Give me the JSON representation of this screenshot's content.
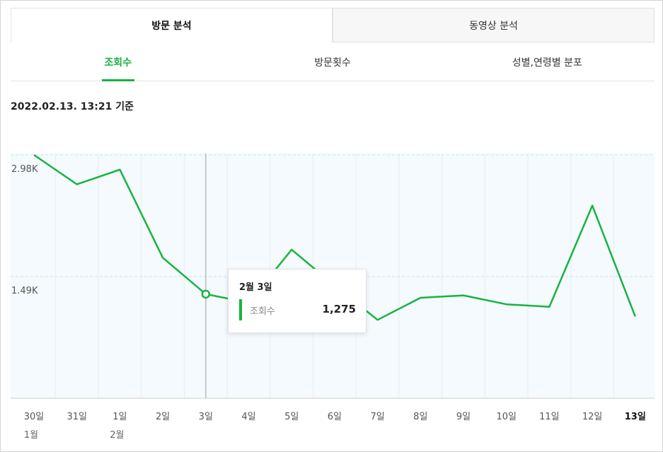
{
  "tabs": {
    "main": [
      {
        "label": "방문 분석",
        "active": true
      },
      {
        "label": "동영상 분석",
        "active": false
      }
    ],
    "sub": [
      {
        "label": "조회수",
        "active": true
      },
      {
        "label": "방문횟수",
        "active": false
      },
      {
        "label": "성별,연령별 분포",
        "active": false
      }
    ]
  },
  "timestamp": "2022.02.13. 13:21 기준",
  "colors": {
    "accent": "#18b340",
    "plot_bg": "#f4fafd"
  },
  "tooltip": {
    "date": "2월 3일",
    "metric": "조회수",
    "value": "1,275"
  },
  "chart_data": {
    "type": "line",
    "x_labels": [
      "30일",
      "31일",
      "1일",
      "2일",
      "3일",
      "4일",
      "5일",
      "6일",
      "7일",
      "8일",
      "9일",
      "10일",
      "11일",
      "12일",
      "13일"
    ],
    "month_labels": [
      "1월",
      "",
      "2월",
      "",
      "",
      "",
      "",
      "",
      "",
      "",
      "",
      "",
      "",
      "",
      ""
    ],
    "series": [
      {
        "name": "조회수",
        "values": [
          2980,
          2620,
          2800,
          1720,
          1275,
          1170,
          1820,
          1380,
          960,
          1230,
          1260,
          1150,
          1120,
          2360,
          1000
        ]
      }
    ],
    "y_ticks": [
      {
        "value": 2980,
        "label": "2.98K"
      },
      {
        "value": 1490,
        "label": "1.49K"
      }
    ],
    "ylim": [
      0,
      2980
    ],
    "highlight_index": 4,
    "bold_last_label": true
  }
}
